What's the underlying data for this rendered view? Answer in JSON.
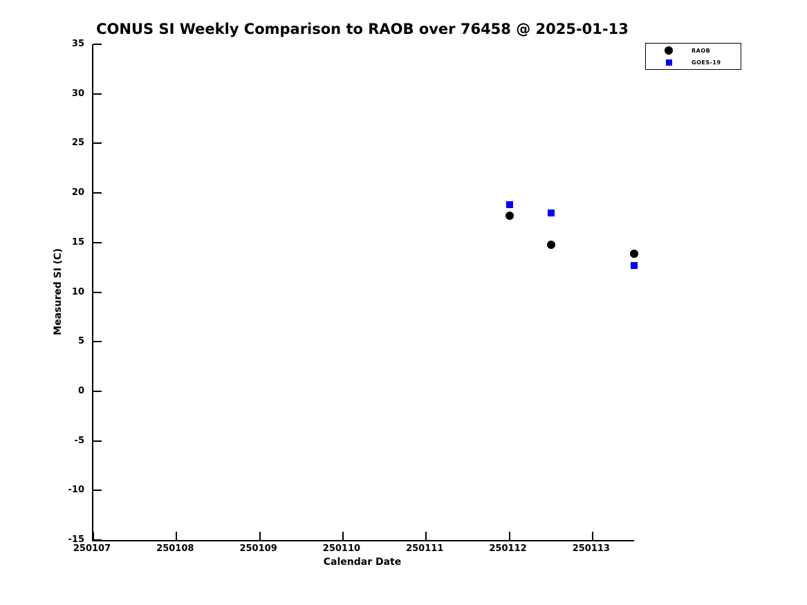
{
  "title": "CONUS SI Weekly Comparison to RAOB over 76458 @ 2025-01-13",
  "chart_data": {
    "type": "scatter",
    "title": "CONUS SI Weekly Comparison to RAOB over 76458 @ 2025-01-13",
    "xlabel": "Calendar Date",
    "ylabel": "Measured SI (C)",
    "xlim": [
      250107,
      250113.5
    ],
    "ylim": [
      -15,
      35
    ],
    "xticks": [
      250107,
      250108,
      250109,
      250110,
      250111,
      250112,
      250113
    ],
    "yticks": [
      -15,
      -10,
      -5,
      0,
      5,
      10,
      15,
      20,
      25,
      30,
      35
    ],
    "grid": false,
    "legend_position": "top-right",
    "background_color": "#ffffff",
    "series": [
      {
        "name": "RAOB",
        "marker": "circle",
        "color": "#000000",
        "points": [
          [
            250112.0,
            17.7
          ],
          [
            250112.5,
            14.8
          ],
          [
            250113.5,
            13.9
          ]
        ]
      },
      {
        "name": "GOES-19",
        "marker": "square",
        "color": "#0000ff",
        "points": [
          [
            250112.0,
            18.8
          ],
          [
            250112.5,
            18.0
          ],
          [
            250113.5,
            12.7
          ]
        ]
      }
    ]
  }
}
